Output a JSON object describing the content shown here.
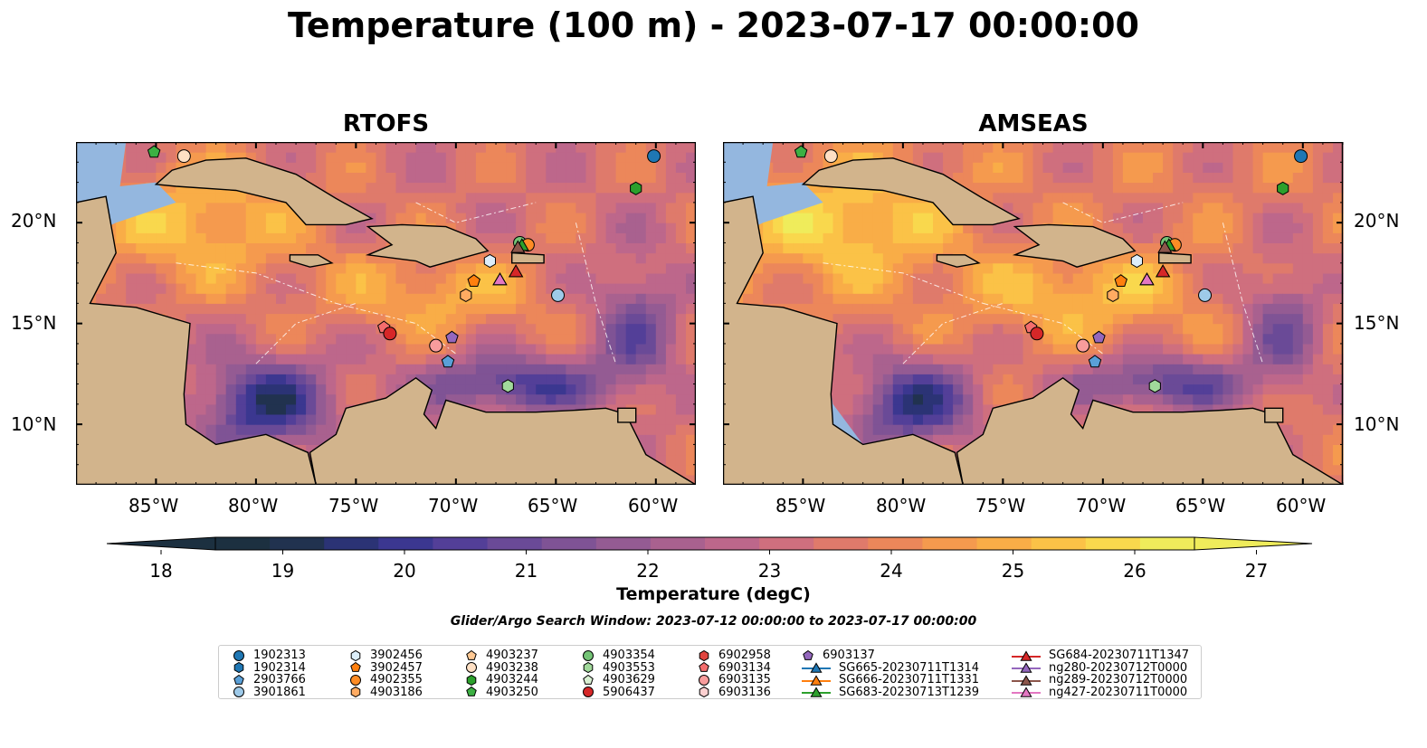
{
  "title": "Temperature (100 m) - 2023-07-17 00:00:00",
  "panels": [
    {
      "title": "RTOFS",
      "model": "rtofs"
    },
    {
      "title": "AMSEAS",
      "model": "amseas"
    }
  ],
  "lat_ticks": [
    "10°N",
    "15°N",
    "20°N"
  ],
  "lon_ticks": [
    "85°W",
    "80°W",
    "75°W",
    "70°W",
    "65°W",
    "60°W"
  ],
  "colorbar": {
    "label": "Temperature (degC)",
    "ticks": [
      "18",
      "19",
      "20",
      "21",
      "22",
      "23",
      "24",
      "25",
      "26",
      "27"
    ],
    "colors": [
      "#1c3040",
      "#21324f",
      "#2b3375",
      "#3b3790",
      "#533f98",
      "#6a4a97",
      "#7f5395",
      "#945b93",
      "#a9618f",
      "#bd678b",
      "#cf6f7e",
      "#df7a6b",
      "#ec875a",
      "#f59a4e",
      "#f9ad47",
      "#fbc247",
      "#f9d84d",
      "#efec5b"
    ]
  },
  "search_window": "Glider/Argo Search Window: 2023-07-12 00:00:00 to 2023-07-17 00:00:00",
  "legend": [
    {
      "label": "1902313",
      "marker": "circle",
      "color": "#1f77b4"
    },
    {
      "label": "1902314",
      "marker": "hexagon",
      "color": "#1f77b4"
    },
    {
      "label": "2903766",
      "marker": "pentagon",
      "color": "#5aa0d8"
    },
    {
      "label": "3901861",
      "marker": "circle",
      "color": "#9ecae9"
    },
    {
      "label": "3902456",
      "marker": "hexagon",
      "color": "#dceefa"
    },
    {
      "label": "3902457",
      "marker": "pentagon",
      "color": "#ff7f0e"
    },
    {
      "label": "4902355",
      "marker": "circle",
      "color": "#ff8c25"
    },
    {
      "label": "4903186",
      "marker": "hexagon",
      "color": "#ffab62"
    },
    {
      "label": "4903237",
      "marker": "pentagon",
      "color": "#ffc994"
    },
    {
      "label": "4903238",
      "marker": "circle",
      "color": "#ffe0c4"
    },
    {
      "label": "4903244",
      "marker": "hexagon",
      "color": "#2ca02c"
    },
    {
      "label": "4903250",
      "marker": "pentagon",
      "color": "#3cb043"
    },
    {
      "label": "4903354",
      "marker": "circle",
      "color": "#74c476"
    },
    {
      "label": "4903553",
      "marker": "hexagon",
      "color": "#a1d99b"
    },
    {
      "label": "4903629",
      "marker": "pentagon",
      "color": "#d9f0d3"
    },
    {
      "label": "5906437",
      "marker": "circle",
      "color": "#d62728"
    },
    {
      "label": "6902958",
      "marker": "hexagon",
      "color": "#e0443f"
    },
    {
      "label": "6903134",
      "marker": "pentagon",
      "color": "#f46d6d"
    },
    {
      "label": "6903135",
      "marker": "circle",
      "color": "#f89c9c"
    },
    {
      "label": "6903136",
      "marker": "hexagon",
      "color": "#fdd0d0"
    },
    {
      "label": "6903137",
      "marker": "pentagon",
      "color": "#9467bd"
    },
    {
      "label": "SG665-20230711T1314",
      "marker": "triangle",
      "color": "#1f77b4"
    },
    {
      "label": "SG666-20230711T1331",
      "marker": "triangle",
      "color": "#ff7f0e"
    },
    {
      "label": "SG683-20230713T1239",
      "marker": "triangle",
      "color": "#2ca02c"
    },
    {
      "label": "SG684-20230711T1347",
      "marker": "triangle",
      "color": "#d62728"
    },
    {
      "label": "ng280-20230712T0000",
      "marker": "triangle",
      "color": "#9467bd"
    },
    {
      "label": "ng289-20230712T0000",
      "marker": "triangle",
      "color": "#8c564b"
    },
    {
      "label": "ng427-20230711T0000",
      "marker": "triangle",
      "color": "#e377c2"
    }
  ],
  "chart_data": {
    "type": "heatmap",
    "title": "Temperature (100 m) - 2023-07-17 00:00:00",
    "variable": "Temperature (degC)",
    "depth": "100 m",
    "time": "2023-07-17 00:00:00",
    "vmin": 18,
    "vmax": 27,
    "xlim": [
      -89,
      -58
    ],
    "ylim": [
      7,
      24
    ],
    "map_extent": {
      "lon": [
        -89,
        -58
      ],
      "lat": [
        7,
        24
      ]
    },
    "panels": [
      "RTOFS",
      "AMSEAS"
    ],
    "platforms": [
      {
        "id": "1902313",
        "lon": -60.1,
        "lat": 23.3
      },
      {
        "id": "4903244",
        "lon": -61.0,
        "lat": 21.7
      },
      {
        "id": "4903250",
        "lon": -85.1,
        "lat": 23.5
      },
      {
        "id": "4903238",
        "lon": -83.6,
        "lat": 23.3
      },
      {
        "id": "4903354",
        "lon": -66.8,
        "lat": 19.0
      },
      {
        "id": "4902355",
        "lon": -66.4,
        "lat": 18.9
      },
      {
        "id": "3902456",
        "lon": -68.3,
        "lat": 18.1
      },
      {
        "id": "3902457",
        "lon": -69.1,
        "lat": 17.1
      },
      {
        "id": "4903186",
        "lon": -69.5,
        "lat": 16.4
      },
      {
        "id": "3901861",
        "lon": -64.9,
        "lat": 16.4
      },
      {
        "id": "6903134",
        "lon": -73.6,
        "lat": 14.8
      },
      {
        "id": "5906437",
        "lon": -73.3,
        "lat": 14.5
      },
      {
        "id": "6903135",
        "lon": -71.0,
        "lat": 13.9
      },
      {
        "id": "6903137",
        "lon": -70.2,
        "lat": 14.3
      },
      {
        "id": "2903766",
        "lon": -70.4,
        "lat": 13.1
      },
      {
        "id": "4903553",
        "lon": -67.4,
        "lat": 11.9
      },
      {
        "id": "SG665-20230711T1314",
        "lon": -67.8,
        "lat": 17.2
      },
      {
        "id": "SG666-20230711T1331",
        "lon": -67.0,
        "lat": 17.6
      },
      {
        "id": "SG683-20230713T1239",
        "lon": -66.7,
        "lat": 18.9
      },
      {
        "id": "SG684-20230711T1347",
        "lon": -67.0,
        "lat": 17.6
      },
      {
        "id": "ng280-20230712T0000",
        "lon": -67.8,
        "lat": 17.2
      },
      {
        "id": "ng289-20230712T0000",
        "lon": -66.9,
        "lat": 18.8
      },
      {
        "id": "ng427-20230711T0000",
        "lon": -67.8,
        "lat": 17.2
      }
    ]
  }
}
